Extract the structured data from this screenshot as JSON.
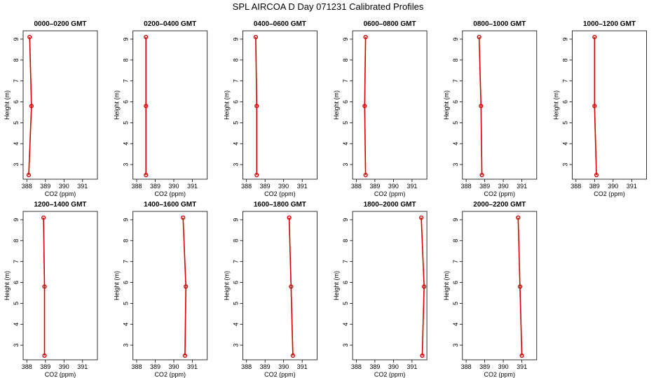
{
  "title": "SPL AIRCOA D  Day 071231  Calibrated Profiles",
  "colors": {
    "series": "#d40000",
    "axis": "#000000",
    "background": "#ffffff"
  },
  "chart_data": [
    {
      "type": "line",
      "title": "0000–0200 GMT",
      "xlabel": "CO2 (ppm)",
      "ylabel": "Height (m)",
      "xlim": [
        387.8,
        391.8
      ],
      "ylim": [
        2.3,
        9.4
      ],
      "xticks": [
        "388",
        "389",
        "390",
        "391"
      ],
      "yticks": [
        "3",
        "4",
        "5",
        "6",
        "7",
        "8",
        "9"
      ],
      "x": [
        388.1,
        388.25,
        388.15
      ],
      "y": [
        2.5,
        5.8,
        9.1
      ]
    },
    {
      "type": "line",
      "title": "0200–0400 GMT",
      "xlabel": "CO2 (ppm)",
      "ylabel": "Height (m)",
      "xlim": [
        387.8,
        391.8
      ],
      "ylim": [
        2.3,
        9.4
      ],
      "xticks": [
        "388",
        "389",
        "390",
        "391"
      ],
      "yticks": [
        "3",
        "4",
        "5",
        "6",
        "7",
        "8",
        "9"
      ],
      "x": [
        388.5,
        388.5,
        388.5
      ],
      "y": [
        2.5,
        5.8,
        9.1
      ]
    },
    {
      "type": "line",
      "title": "0400–0600 GMT",
      "xlabel": "CO2 (ppm)",
      "ylabel": "Height (m)",
      "xlim": [
        387.8,
        391.8
      ],
      "ylim": [
        2.3,
        9.4
      ],
      "xticks": [
        "388",
        "389",
        "390",
        "391"
      ],
      "yticks": [
        "3",
        "4",
        "5",
        "6",
        "7",
        "8",
        "9"
      ],
      "x": [
        388.55,
        388.55,
        388.5
      ],
      "y": [
        2.5,
        5.8,
        9.1
      ]
    },
    {
      "type": "line",
      "title": "0600–0800 GMT",
      "xlabel": "CO2 (ppm)",
      "ylabel": "Height (m)",
      "xlim": [
        387.8,
        391.8
      ],
      "ylim": [
        2.3,
        9.4
      ],
      "xticks": [
        "388",
        "389",
        "390",
        "391"
      ],
      "yticks": [
        "3",
        "4",
        "5",
        "6",
        "7",
        "8",
        "9"
      ],
      "x": [
        388.5,
        388.45,
        388.5
      ],
      "y": [
        2.5,
        5.8,
        9.1
      ]
    },
    {
      "type": "line",
      "title": "0800–1000 GMT",
      "xlabel": "CO2 (ppm)",
      "ylabel": "Height (m)",
      "xlim": [
        387.8,
        391.8
      ],
      "ylim": [
        2.3,
        9.4
      ],
      "xticks": [
        "388",
        "389",
        "390",
        "391"
      ],
      "yticks": [
        "3",
        "4",
        "5",
        "6",
        "7",
        "8",
        "9"
      ],
      "x": [
        388.85,
        388.8,
        388.7
      ],
      "y": [
        2.5,
        5.8,
        9.1
      ]
    },
    {
      "type": "line",
      "title": "1000–1200 GMT",
      "xlabel": "CO2 (ppm)",
      "ylabel": "Height (m)",
      "xlim": [
        387.8,
        391.8
      ],
      "ylim": [
        2.3,
        9.4
      ],
      "xticks": [
        "388",
        "389",
        "390",
        "391"
      ],
      "yticks": [
        "3",
        "4",
        "5",
        "6",
        "7",
        "8",
        "9"
      ],
      "x": [
        389.1,
        389.0,
        389.0
      ],
      "y": [
        2.5,
        5.8,
        9.1
      ]
    },
    {
      "type": "line",
      "title": "1200–1400 GMT",
      "xlabel": "CO2 (ppm)",
      "ylabel": "Height (m)",
      "xlim": [
        387.8,
        391.8
      ],
      "ylim": [
        2.3,
        9.4
      ],
      "xticks": [
        "388",
        "389",
        "390",
        "391"
      ],
      "yticks": [
        "3",
        "4",
        "5",
        "6",
        "7",
        "8",
        "9"
      ],
      "x": [
        388.95,
        388.95,
        388.9
      ],
      "y": [
        2.5,
        5.8,
        9.1
      ]
    },
    {
      "type": "line",
      "title": "1400–1600 GMT",
      "xlabel": "CO2 (ppm)",
      "ylabel": "Height (m)",
      "xlim": [
        387.8,
        391.8
      ],
      "ylim": [
        2.3,
        9.4
      ],
      "xticks": [
        "388",
        "389",
        "390",
        "391"
      ],
      "yticks": [
        "3",
        "4",
        "5",
        "6",
        "7",
        "8",
        "9"
      ],
      "x": [
        390.6,
        390.65,
        390.5
      ],
      "y": [
        2.5,
        5.8,
        9.1
      ]
    },
    {
      "type": "line",
      "title": "1600–1800 GMT",
      "xlabel": "CO2 (ppm)",
      "ylabel": "Height (m)",
      "xlim": [
        387.8,
        391.8
      ],
      "ylim": [
        2.3,
        9.4
      ],
      "xticks": [
        "388",
        "389",
        "390",
        "391"
      ],
      "yticks": [
        "3",
        "4",
        "5",
        "6",
        "7",
        "8",
        "9"
      ],
      "x": [
        390.5,
        390.4,
        390.3
      ],
      "y": [
        2.5,
        5.8,
        9.1
      ]
    },
    {
      "type": "line",
      "title": "1800–2000 GMT",
      "xlabel": "CO2 (ppm)",
      "ylabel": "Height (m)",
      "xlim": [
        387.8,
        391.8
      ],
      "ylim": [
        2.3,
        9.4
      ],
      "xticks": [
        "388",
        "389",
        "390",
        "391"
      ],
      "yticks": [
        "3",
        "4",
        "5",
        "6",
        "7",
        "8",
        "9"
      ],
      "x": [
        391.55,
        391.65,
        391.5
      ],
      "y": [
        2.5,
        5.8,
        9.1
      ]
    },
    {
      "type": "line",
      "title": "2000–2200 GMT",
      "xlabel": "CO2 (ppm)",
      "ylabel": "Height (m)",
      "xlim": [
        387.8,
        391.8
      ],
      "ylim": [
        2.3,
        9.4
      ],
      "xticks": [
        "388",
        "389",
        "390",
        "391"
      ],
      "yticks": [
        "3",
        "4",
        "5",
        "6",
        "7",
        "8",
        "9"
      ],
      "x": [
        391.0,
        390.9,
        390.8
      ],
      "y": [
        2.5,
        5.8,
        9.1
      ]
    }
  ]
}
